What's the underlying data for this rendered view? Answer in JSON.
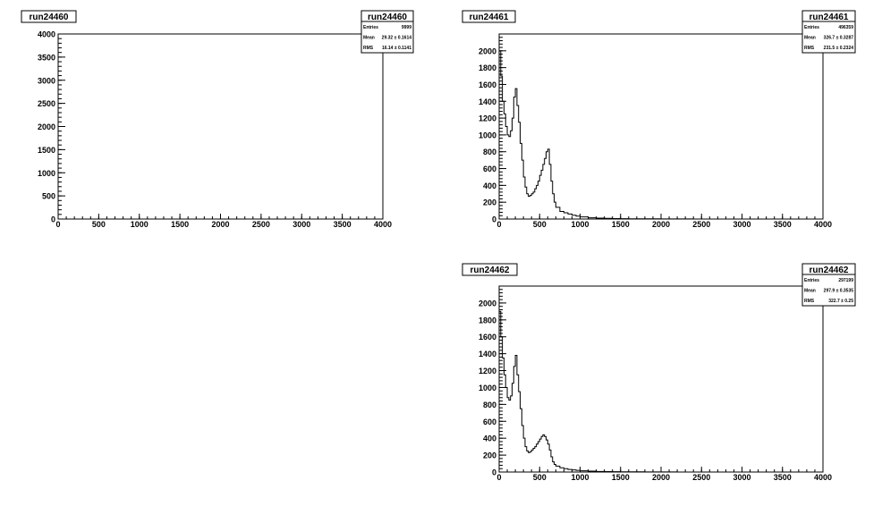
{
  "chart_data": [
    {
      "type": "histogram",
      "title": "run24460",
      "stats": {
        "title": "run24460",
        "rows": [
          {
            "label": "Entries",
            "value": "9999"
          },
          {
            "label": "Mean",
            "value": "29.32 ± 0.1614"
          },
          {
            "label": "RMS",
            "value": "16.14 ± 0.1141"
          }
        ]
      },
      "xlim": [
        0,
        4000
      ],
      "ylim": [
        0,
        4000
      ],
      "x_ticks": [
        0,
        500,
        1000,
        1500,
        2000,
        2500,
        3000,
        3500,
        4000
      ],
      "y_ticks": [
        0,
        500,
        1000,
        1500,
        2000,
        2500,
        3000,
        3500,
        4000
      ],
      "x": [],
      "y": []
    },
    {
      "type": "histogram",
      "title": "run24461",
      "stats": {
        "title": "run24461",
        "rows": [
          {
            "label": "Entries",
            "value": "496359"
          },
          {
            "label": "Mean",
            "value": "326.7 ± 0.3287"
          },
          {
            "label": "RMS",
            "value": "231.5 ± 0.2324"
          }
        ]
      },
      "xlim": [
        0,
        4000
      ],
      "ylim": [
        0,
        2200
      ],
      "x_ticks": [
        0,
        500,
        1000,
        1500,
        2000,
        2500,
        3000,
        3500,
        4000
      ],
      "y_ticks": [
        0,
        200,
        400,
        600,
        800,
        1000,
        1200,
        1400,
        1600,
        1800,
        2000
      ],
      "x": [
        0,
        20,
        40,
        60,
        80,
        100,
        120,
        140,
        160,
        180,
        200,
        220,
        240,
        260,
        280,
        300,
        320,
        340,
        360,
        380,
        400,
        420,
        440,
        460,
        480,
        500,
        520,
        540,
        560,
        580,
        600,
        620,
        640,
        660,
        680,
        700,
        750,
        800,
        850,
        900,
        950,
        1000,
        1100,
        1200,
        1300,
        1400,
        1500,
        1600,
        1700,
        1800,
        2000,
        2200,
        2400,
        2600,
        2800,
        3000,
        3200,
        3400,
        3600,
        3800,
        4000
      ],
      "y": [
        2000,
        1700,
        1400,
        1250,
        1100,
        1000,
        980,
        1050,
        1200,
        1450,
        1550,
        1350,
        1150,
        900,
        700,
        500,
        380,
        300,
        270,
        280,
        300,
        320,
        360,
        400,
        450,
        520,
        580,
        650,
        720,
        800,
        830,
        650,
        450,
        300,
        200,
        140,
        90,
        75,
        60,
        45,
        35,
        25,
        15,
        10,
        8,
        5,
        4,
        3,
        2,
        2,
        1,
        1,
        0,
        0,
        0,
        0,
        0,
        0,
        0,
        0,
        0
      ]
    },
    {
      "type": "histogram",
      "title": "run24462",
      "stats": {
        "title": "run24462",
        "rows": [
          {
            "label": "Entries",
            "value": "297199"
          },
          {
            "label": "Mean",
            "value": "297.9 ± 0.3535"
          },
          {
            "label": "RMS",
            "value": "322.7 ± 0.25"
          }
        ]
      },
      "xlim": [
        0,
        4000
      ],
      "ylim": [
        0,
        2200
      ],
      "x_ticks": [
        0,
        500,
        1000,
        1500,
        2000,
        2500,
        3000,
        3500,
        4000
      ],
      "y_ticks": [
        0,
        200,
        400,
        600,
        800,
        1000,
        1200,
        1400,
        1600,
        1800,
        2000
      ],
      "x": [
        0,
        20,
        40,
        60,
        80,
        100,
        120,
        140,
        160,
        180,
        200,
        220,
        240,
        260,
        280,
        300,
        320,
        340,
        360,
        380,
        400,
        420,
        440,
        460,
        480,
        500,
        520,
        540,
        560,
        580,
        600,
        620,
        640,
        660,
        680,
        700,
        750,
        800,
        850,
        900,
        950,
        1000,
        1100,
        1200,
        1300,
        1400,
        1500,
        1600,
        1700,
        1800,
        2000,
        2200,
        2400,
        2600,
        2800,
        3000,
        3200,
        3400,
        3600,
        3800,
        4000
      ],
      "y": [
        1900,
        1600,
        1350,
        1150,
        1000,
        880,
        850,
        900,
        1050,
        1250,
        1380,
        1150,
        950,
        750,
        550,
        400,
        300,
        250,
        230,
        240,
        260,
        280,
        300,
        330,
        360,
        390,
        420,
        440,
        420,
        380,
        330,
        260,
        180,
        120,
        90,
        70,
        50,
        40,
        30,
        25,
        20,
        15,
        10,
        7,
        5,
        4,
        3,
        2,
        2,
        1,
        1,
        0,
        0,
        0,
        0,
        0,
        0,
        0,
        0,
        0,
        0
      ]
    }
  ]
}
